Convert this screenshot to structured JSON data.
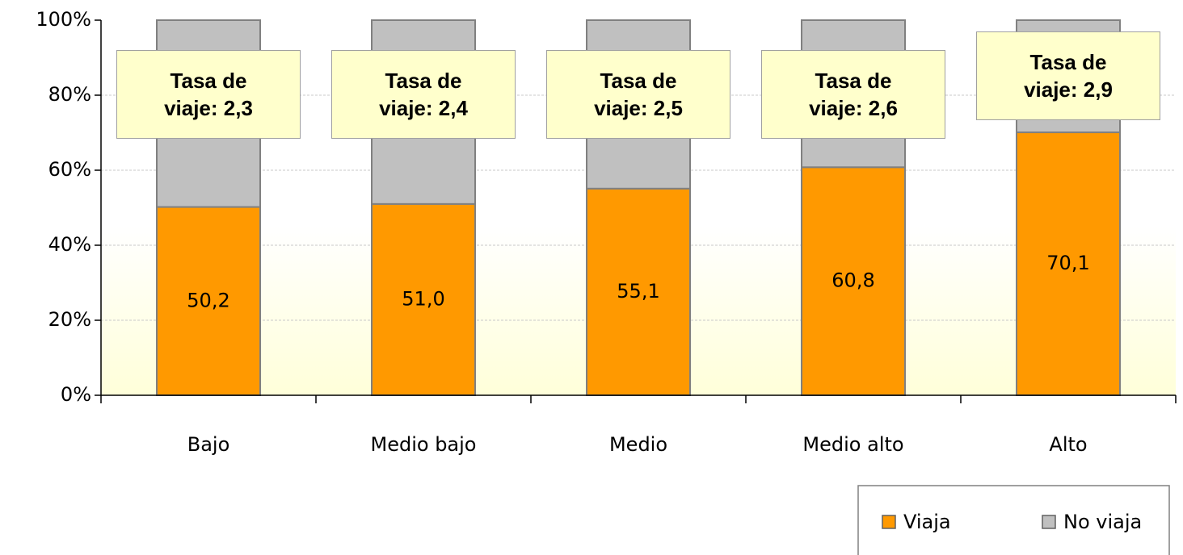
{
  "chart_data": {
    "type": "stacked_bar",
    "categories": [
      "Bajo",
      "Medio bajo",
      "Medio",
      "Medio alto",
      "Alto"
    ],
    "series": [
      {
        "name": "Viaja",
        "color": "#ff9900",
        "values": [
          50.2,
          51.0,
          55.1,
          60.8,
          70.1
        ],
        "value_labels": [
          "50,2",
          "51,0",
          "55,1",
          "60,8",
          "70,1"
        ]
      },
      {
        "name": "No viaja",
        "color": "#c0c0c0",
        "values": [
          49.8,
          49.0,
          44.9,
          39.2,
          29.9
        ]
      }
    ],
    "annotations": [
      "Tasa de viaje: 2,3",
      "Tasa de viaje: 2,4",
      "Tasa de viaje: 2,5",
      "Tasa de viaje: 2,6",
      "Tasa de viaje: 2,9"
    ],
    "ylim": [
      0,
      100
    ],
    "yticks": [
      {
        "value": 0,
        "label": "0%"
      },
      {
        "value": 20,
        "label": "20%"
      },
      {
        "value": 40,
        "label": "40%"
      },
      {
        "value": 60,
        "label": "60%"
      },
      {
        "value": 80,
        "label": "80%"
      },
      {
        "value": 100,
        "label": "100%"
      }
    ],
    "grid": true,
    "legend": "bottom-right"
  }
}
